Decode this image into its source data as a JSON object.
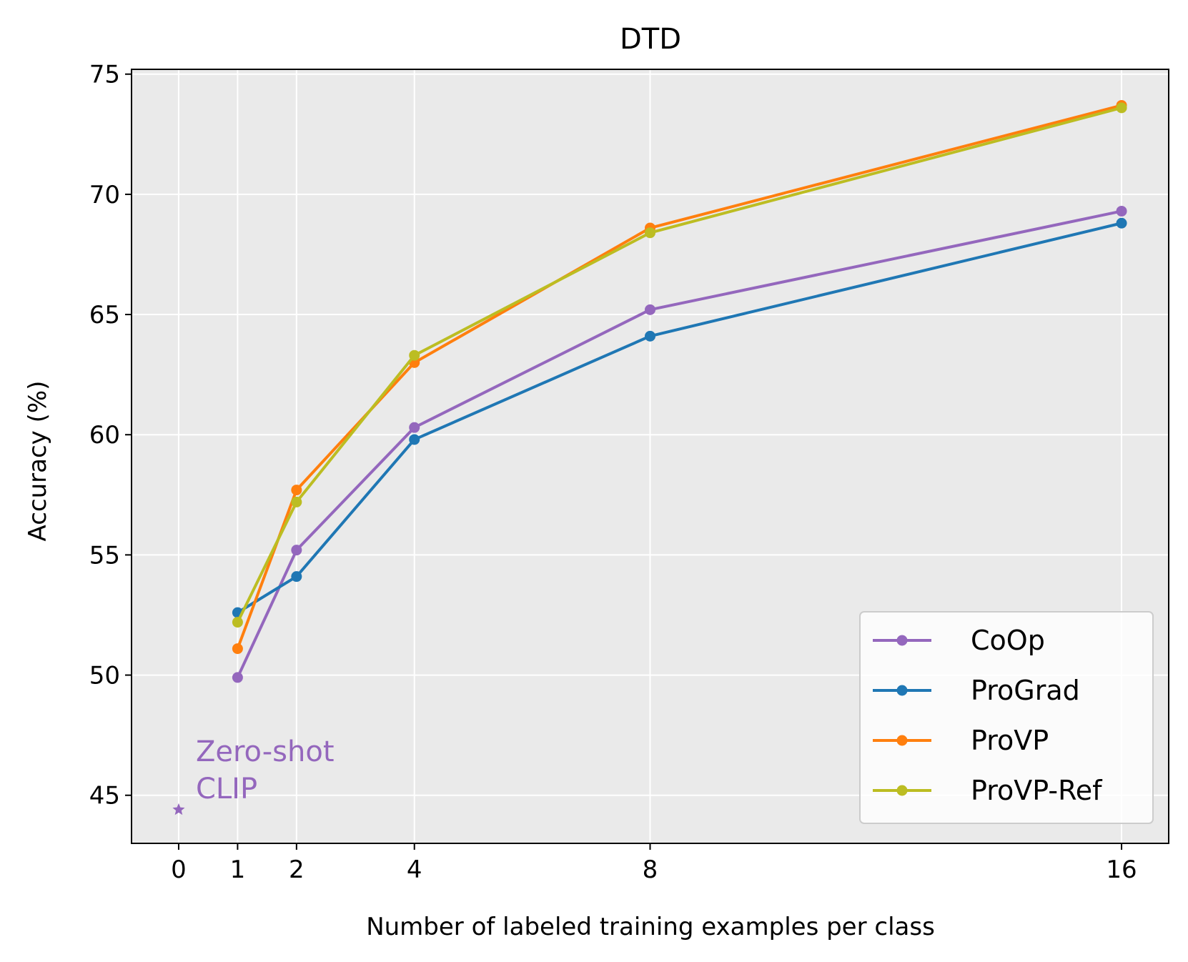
{
  "chart_data": {
    "type": "line",
    "title": "DTD",
    "xlabel": "Number of labeled training examples per class",
    "ylabel": "Accuracy (%)",
    "x": [
      1,
      2,
      4,
      8,
      16
    ],
    "x_ticks": [
      0,
      1,
      2,
      4,
      8,
      16
    ],
    "x_tick_labels": [
      "0",
      "1",
      "2",
      "4",
      "8",
      "16"
    ],
    "xlim": [
      -0.8,
      16.8
    ],
    "ylim": [
      43,
      75.2
    ],
    "y_ticks": [
      45,
      50,
      55,
      60,
      65,
      70,
      75
    ],
    "y_tick_labels": [
      "45",
      "50",
      "55",
      "60",
      "65",
      "70",
      "75"
    ],
    "grid": true,
    "background": "#eaeaea",
    "legend_position": "lower-right",
    "series": [
      {
        "name": "CoOp",
        "color": "#9467bd",
        "values": [
          49.9,
          55.2,
          60.3,
          65.2,
          69.3
        ]
      },
      {
        "name": "ProGrad",
        "color": "#1f77b4",
        "values": [
          52.6,
          54.1,
          59.8,
          64.1,
          68.8
        ]
      },
      {
        "name": "ProVP",
        "color": "#ff7f0e",
        "values": [
          51.1,
          57.7,
          63.0,
          68.6,
          73.7
        ]
      },
      {
        "name": "ProVP-Ref",
        "color": "#bcbd22",
        "values": [
          52.2,
          57.2,
          63.3,
          68.4,
          73.6
        ]
      }
    ],
    "zero_shot": {
      "x": 0,
      "y": 44.4,
      "color": "#9467bd",
      "label_lines": [
        "Zero-shot",
        "CLIP"
      ]
    }
  }
}
